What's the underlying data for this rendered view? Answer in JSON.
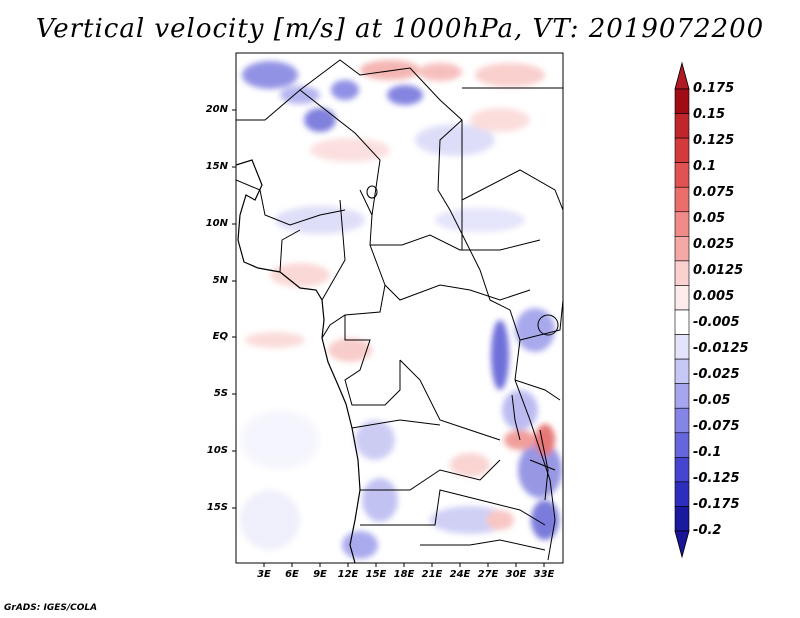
{
  "title": "Vertical velocity [m/s] at 1000hPa, VT: 2019072200",
  "credit": "GrADS: IGES/COLA",
  "map": {
    "type": "filled-contour-map",
    "variable": "Vertical velocity",
    "units": "m/s",
    "level": "1000hPa",
    "valid_time": "2019072200",
    "lon_range": [
      0,
      35
    ],
    "lat_range": [
      -20,
      25
    ],
    "x_ticks": [
      "3E",
      "6E",
      "9E",
      "12E",
      "15E",
      "18E",
      "21E",
      "24E",
      "27E",
      "30E",
      "33E"
    ],
    "y_ticks": [
      "20N",
      "15N",
      "10N",
      "5N",
      "EQ",
      "5S",
      "10S",
      "15S"
    ]
  },
  "colorbar": {
    "labels": [
      "0.175",
      "0.15",
      "0.125",
      "0.1",
      "0.075",
      "0.05",
      "0.025",
      "0.0125",
      "0.005",
      "-0.005",
      "-0.0125",
      "-0.025",
      "-0.05",
      "-0.075",
      "-0.1",
      "-0.125",
      "-0.175",
      "-0.2"
    ],
    "colors": [
      "#a00c14",
      "#c0252b",
      "#d4393c",
      "#e15252",
      "#ea6e6b",
      "#f08b87",
      "#f5a9a6",
      "#fad1cf",
      "#fdeaea",
      "#ffffff",
      "#e3e3fb",
      "#c7c7f5",
      "#a6a6ee",
      "#8585e6",
      "#6565dc",
      "#4545cf",
      "#2e2ebe",
      "#1a1a9e"
    ],
    "top_color": "#b01a22",
    "bottom_color": "#1a1596"
  }
}
